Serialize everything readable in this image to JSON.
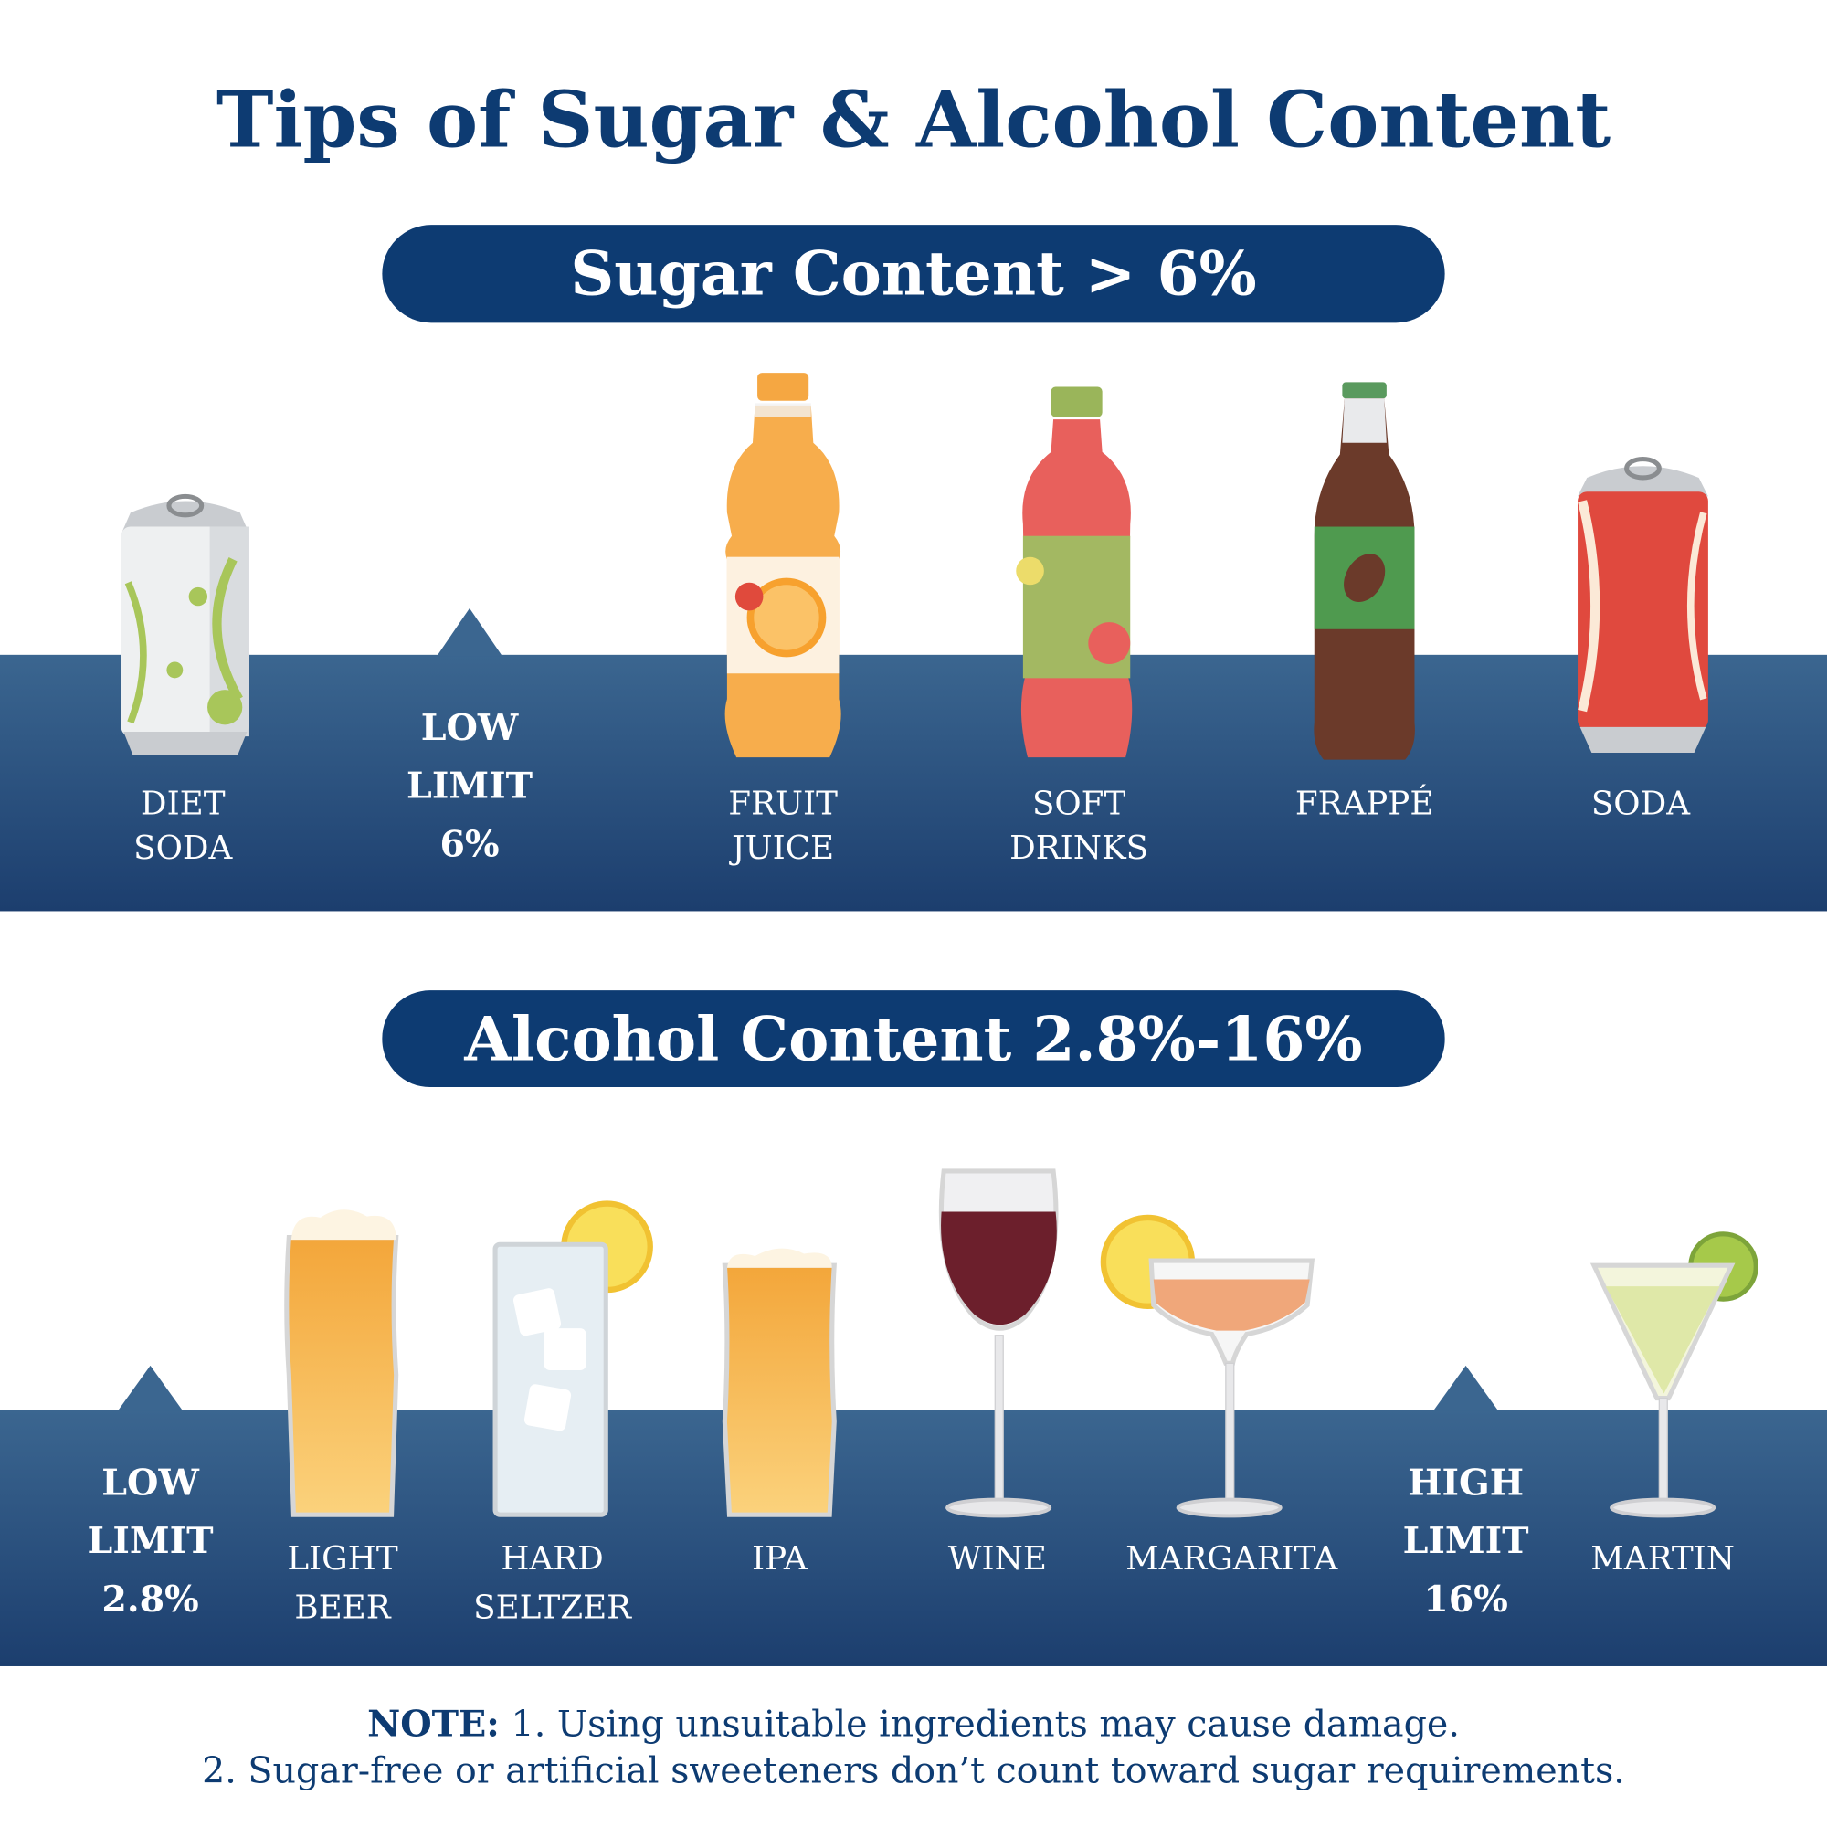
{
  "title": "Tips of Sugar & Alcohol Content",
  "sugar": {
    "heading": "Sugar Content > 6%",
    "items": [
      [
        "DIET",
        "SODA"
      ],
      [
        "FRUIT",
        "JUICE"
      ],
      [
        "SOFT",
        "DRINKS"
      ],
      [
        "FRAPPÉ"
      ],
      [
        "SODA"
      ]
    ],
    "limit": [
      "LOW",
      "LIMIT",
      "6%"
    ]
  },
  "alcohol": {
    "heading": "Alcohol Content 2.8%-16%",
    "items": [
      [
        "LIGHT",
        "BEER"
      ],
      [
        "HARD",
        "SELTZER"
      ],
      [
        "IPA"
      ],
      [
        "WINE"
      ],
      [
        "MARGARITA"
      ],
      [
        "MARTIN"
      ]
    ],
    "limits": [
      [
        "LOW",
        "LIMIT",
        "2.8%"
      ],
      [
        "HIGH",
        "LIMIT",
        "16%"
      ]
    ]
  },
  "note": {
    "label": "NOTE:",
    "lines": [
      "1. Using unsuitable ingredients may cause damage.",
      "2. Sugar-free or artificial sweeteners don’t count toward sugar requirements."
    ]
  }
}
